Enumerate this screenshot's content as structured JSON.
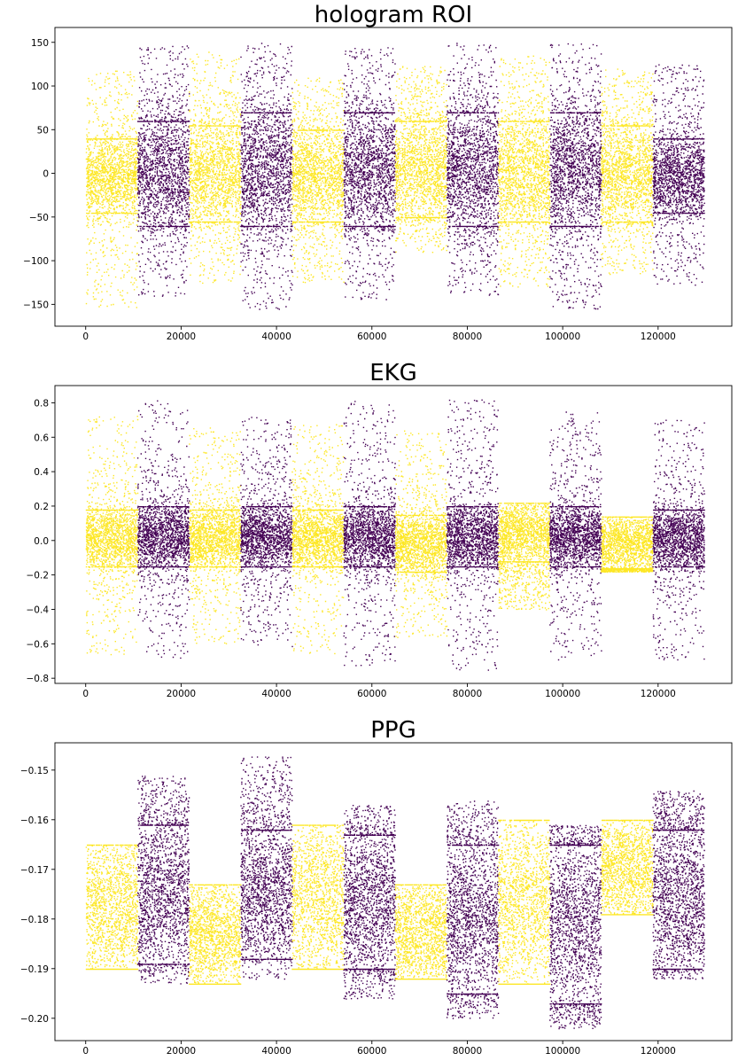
{
  "colors": {
    "yellow": "#fde725",
    "purple": "#440154"
  },
  "chart_data": [
    {
      "type": "scatter",
      "title": "hologram ROI",
      "xlabel": "",
      "ylabel": "",
      "xlim": [
        -6450,
        135450
      ],
      "ylim": [
        -175,
        167
      ],
      "xticks": [
        0,
        20000,
        40000,
        60000,
        80000,
        100000,
        120000
      ],
      "xtick_labels": [
        "0",
        "20000",
        "40000",
        "60000",
        "80000",
        "100000",
        "120000"
      ],
      "yticks": [
        150,
        100,
        50,
        0,
        -50,
        -100,
        -150
      ],
      "ytick_labels": [
        "150",
        "100",
        "50",
        "0",
        "−50",
        "−100",
        "−150"
      ],
      "grid": false,
      "segments": [
        {
          "x_range": [
            0,
            10800
          ],
          "class": "yellow",
          "core": [
            -45,
            40
          ],
          "extent": [
            -153,
            118
          ]
        },
        {
          "x_range": [
            10800,
            21600
          ],
          "class": "purple",
          "core": [
            -60,
            60
          ],
          "extent": [
            -140,
            148
          ]
        },
        {
          "x_range": [
            21600,
            32400
          ],
          "class": "yellow",
          "core": [
            -55,
            55
          ],
          "extent": [
            -125,
            140
          ]
        },
        {
          "x_range": [
            32400,
            43200
          ],
          "class": "purple",
          "core": [
            -60,
            70
          ],
          "extent": [
            -155,
            150
          ]
        },
        {
          "x_range": [
            43200,
            54000
          ],
          "class": "yellow",
          "core": [
            -55,
            50
          ],
          "extent": [
            -125,
            110
          ]
        },
        {
          "x_range": [
            54000,
            64800
          ],
          "class": "purple",
          "core": [
            -60,
            70
          ],
          "extent": [
            -145,
            145
          ]
        },
        {
          "x_range": [
            64800,
            75600
          ],
          "class": "yellow",
          "core": [
            -50,
            60
          ],
          "extent": [
            -90,
            125
          ]
        },
        {
          "x_range": [
            75600,
            86400
          ],
          "class": "purple",
          "core": [
            -60,
            70
          ],
          "extent": [
            -140,
            150
          ]
        },
        {
          "x_range": [
            86400,
            97200
          ],
          "class": "yellow",
          "core": [
            -55,
            60
          ],
          "extent": [
            -130,
            135
          ]
        },
        {
          "x_range": [
            97200,
            108000
          ],
          "class": "purple",
          "core": [
            -60,
            70
          ],
          "extent": [
            -155,
            150
          ]
        },
        {
          "x_range": [
            108000,
            118800
          ],
          "class": "yellow",
          "core": [
            -55,
            55
          ],
          "extent": [
            -115,
            120
          ]
        },
        {
          "x_range": [
            118800,
            129600
          ],
          "class": "purple",
          "core": [
            -45,
            40
          ],
          "extent": [
            -128,
            125
          ]
        }
      ]
    },
    {
      "type": "scatter",
      "title": "EKG",
      "xlabel": "",
      "ylabel": "",
      "xlim": [
        -6450,
        135450
      ],
      "ylim": [
        -0.83,
        0.9
      ],
      "xticks": [
        0,
        20000,
        40000,
        60000,
        80000,
        100000,
        120000
      ],
      "xtick_labels": [
        "0",
        "20000",
        "40000",
        "60000",
        "80000",
        "100000",
        "120000"
      ],
      "yticks": [
        0.8,
        0.6,
        0.4,
        0.2,
        0.0,
        -0.2,
        -0.4,
        -0.6,
        -0.8
      ],
      "ytick_labels": [
        "0.8",
        "0.6",
        "0.4",
        "0.2",
        "0.0",
        "−0.2",
        "−0.4",
        "−0.6",
        "−0.8"
      ],
      "grid": false,
      "segments": [
        {
          "x_range": [
            0,
            10800
          ],
          "class": "yellow",
          "core": [
            -0.15,
            0.18
          ],
          "extent": [
            -0.66,
            0.73
          ]
        },
        {
          "x_range": [
            10800,
            21600
          ],
          "class": "purple",
          "core": [
            -0.15,
            0.2
          ],
          "extent": [
            -0.68,
            0.82
          ]
        },
        {
          "x_range": [
            21600,
            32400
          ],
          "class": "yellow",
          "core": [
            -0.15,
            0.18
          ],
          "extent": [
            -0.6,
            0.66
          ]
        },
        {
          "x_range": [
            32400,
            43200
          ],
          "class": "purple",
          "core": [
            -0.15,
            0.2
          ],
          "extent": [
            -0.62,
            0.72
          ]
        },
        {
          "x_range": [
            43200,
            54000
          ],
          "class": "yellow",
          "core": [
            -0.15,
            0.18
          ],
          "extent": [
            -0.66,
            0.68
          ]
        },
        {
          "x_range": [
            54000,
            64800
          ],
          "class": "purple",
          "core": [
            -0.15,
            0.2
          ],
          "extent": [
            -0.73,
            0.82
          ]
        },
        {
          "x_range": [
            64800,
            75600
          ],
          "class": "yellow",
          "core": [
            -0.18,
            0.15
          ],
          "extent": [
            -0.56,
            0.64
          ]
        },
        {
          "x_range": [
            75600,
            86400
          ],
          "class": "purple",
          "core": [
            -0.15,
            0.2
          ],
          "extent": [
            -0.75,
            0.82
          ]
        },
        {
          "x_range": [
            86400,
            97200
          ],
          "class": "yellow",
          "core": [
            -0.12,
            0.22
          ],
          "extent": [
            -0.4,
            0.22
          ]
        },
        {
          "x_range": [
            97200,
            108000
          ],
          "class": "purple",
          "core": [
            -0.15,
            0.2
          ],
          "extent": [
            -0.69,
            0.75
          ]
        },
        {
          "x_range": [
            108000,
            118800
          ],
          "class": "yellow",
          "core": [
            -0.16,
            0.14
          ],
          "extent": [
            -0.18,
            0.14
          ]
        },
        {
          "x_range": [
            118800,
            129600
          ],
          "class": "purple",
          "core": [
            -0.15,
            0.18
          ],
          "extent": [
            -0.69,
            0.71
          ]
        }
      ]
    },
    {
      "type": "scatter",
      "title": "PPG",
      "xlabel": "",
      "ylabel": "",
      "xlim": [
        -6450,
        135450
      ],
      "ylim": [
        -0.2045,
        -0.1445
      ],
      "xticks": [
        0,
        20000,
        40000,
        60000,
        80000,
        100000,
        120000
      ],
      "xtick_labels": [
        "0",
        "20000",
        "40000",
        "60000",
        "80000",
        "100000",
        "120000"
      ],
      "yticks": [
        -0.15,
        -0.16,
        -0.17,
        -0.18,
        -0.19,
        -0.2
      ],
      "ytick_labels": [
        "−0.15",
        "−0.16",
        "−0.17",
        "−0.18",
        "−0.19",
        "−0.20"
      ],
      "grid": false,
      "segments": [
        {
          "x_range": [
            0,
            10800
          ],
          "class": "yellow",
          "core": [
            -0.19,
            -0.165
          ],
          "extent": [
            -0.19,
            -0.165
          ]
        },
        {
          "x_range": [
            10800,
            21600
          ],
          "class": "purple",
          "core": [
            -0.189,
            -0.161
          ],
          "extent": [
            -0.193,
            -0.151
          ]
        },
        {
          "x_range": [
            21600,
            32400
          ],
          "class": "yellow",
          "core": [
            -0.193,
            -0.173
          ],
          "extent": [
            -0.193,
            -0.173
          ]
        },
        {
          "x_range": [
            32400,
            43200
          ],
          "class": "purple",
          "core": [
            -0.188,
            -0.162
          ],
          "extent": [
            -0.192,
            -0.147
          ]
        },
        {
          "x_range": [
            43200,
            54000
          ],
          "class": "yellow",
          "core": [
            -0.19,
            -0.161
          ],
          "extent": [
            -0.19,
            -0.161
          ]
        },
        {
          "x_range": [
            54000,
            64800
          ],
          "class": "purple",
          "core": [
            -0.19,
            -0.163
          ],
          "extent": [
            -0.196,
            -0.157
          ]
        },
        {
          "x_range": [
            64800,
            75600
          ],
          "class": "yellow",
          "core": [
            -0.192,
            -0.173
          ],
          "extent": [
            -0.192,
            -0.173
          ]
        },
        {
          "x_range": [
            75600,
            86400
          ],
          "class": "purple",
          "core": [
            -0.195,
            -0.165
          ],
          "extent": [
            -0.2,
            -0.156
          ]
        },
        {
          "x_range": [
            86400,
            97200
          ],
          "class": "yellow",
          "core": [
            -0.193,
            -0.16
          ],
          "extent": [
            -0.193,
            -0.16
          ]
        },
        {
          "x_range": [
            97200,
            108000
          ],
          "class": "purple",
          "core": [
            -0.197,
            -0.165
          ],
          "extent": [
            -0.202,
            -0.161
          ]
        },
        {
          "x_range": [
            108000,
            118800
          ],
          "class": "yellow",
          "core": [
            -0.179,
            -0.16
          ],
          "extent": [
            -0.179,
            -0.16
          ]
        },
        {
          "x_range": [
            118800,
            129600
          ],
          "class": "purple",
          "core": [
            -0.19,
            -0.162
          ],
          "extent": [
            -0.192,
            -0.154
          ]
        }
      ]
    }
  ]
}
